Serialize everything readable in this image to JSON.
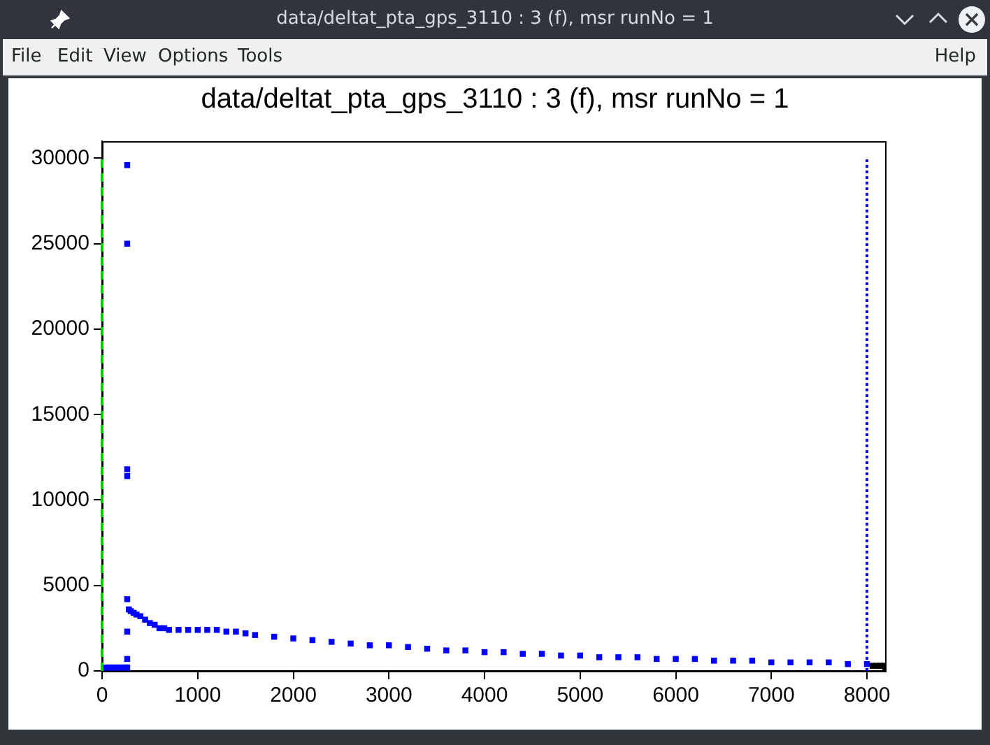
{
  "chart_data": {
    "type": "scatter",
    "title": "data/deltat_pta_gps_3110 : 3 (f), msr runNo = 1",
    "annotations": [
      "File",
      "Edit",
      "View",
      "Options",
      "Tools",
      "Help"
    ],
    "xlim": [
      0,
      8190
    ],
    "ylim": [
      0,
      31000
    ],
    "xticks": [
      0,
      1000,
      2000,
      3000,
      4000,
      5000,
      6000,
      7000,
      8000
    ],
    "yticks": [
      0,
      5000,
      10000,
      15000,
      20000,
      25000,
      30000
    ],
    "grid": false,
    "legend": false,
    "marker": "square",
    "ref_lines": [
      {
        "axis": "x",
        "value": 0,
        "label": null,
        "color": "#00cc00",
        "line_style": "dashed"
      },
      {
        "axis": "x",
        "value": 8000,
        "label": null,
        "color": "#0000ff",
        "line_style": "dotted"
      }
    ],
    "series": [
      {
        "color": "#0000ff",
        "x": [
          40,
          70,
          100,
          130,
          160,
          190,
          220,
          250,
          263,
          263,
          263,
          263,
          263,
          263,
          263,
          263,
          280,
          300,
          330,
          360,
          400,
          450,
          500,
          550,
          600,
          650,
          700,
          800,
          900,
          1000,
          1100,
          1200,
          1300,
          1400,
          1500,
          1600,
          1800,
          2000,
          2200,
          2400,
          2600,
          2800,
          3000,
          3200,
          3400,
          3600,
          3800,
          4000,
          4200,
          4400,
          4600,
          4800,
          5000,
          5200,
          5400,
          5600,
          5800,
          6000,
          6200,
          6400,
          6600,
          6800,
          7000,
          7200,
          7400,
          7600,
          7800,
          8000
        ],
        "values": [
          200,
          200,
          200,
          200,
          200,
          200,
          200,
          200,
          29600,
          25000,
          11800,
          11400,
          4200,
          2300,
          700,
          200,
          3600,
          3500,
          3400,
          3300,
          3200,
          3000,
          2800,
          2700,
          2500,
          2500,
          2400,
          2400,
          2400,
          2400,
          2400,
          2400,
          2300,
          2300,
          2200,
          2100,
          2000,
          1900,
          1800,
          1700,
          1600,
          1500,
          1500,
          1400,
          1300,
          1200,
          1200,
          1100,
          1100,
          1000,
          1000,
          900,
          900,
          800,
          800,
          800,
          700,
          700,
          700,
          600,
          600,
          600,
          500,
          500,
          500,
          500,
          400,
          400
        ]
      },
      {
        "color": "#000000",
        "x": [
          8060,
          8100,
          8140,
          8180,
          8190
        ],
        "values": [
          300,
          300,
          300,
          300,
          0
        ]
      }
    ]
  }
}
